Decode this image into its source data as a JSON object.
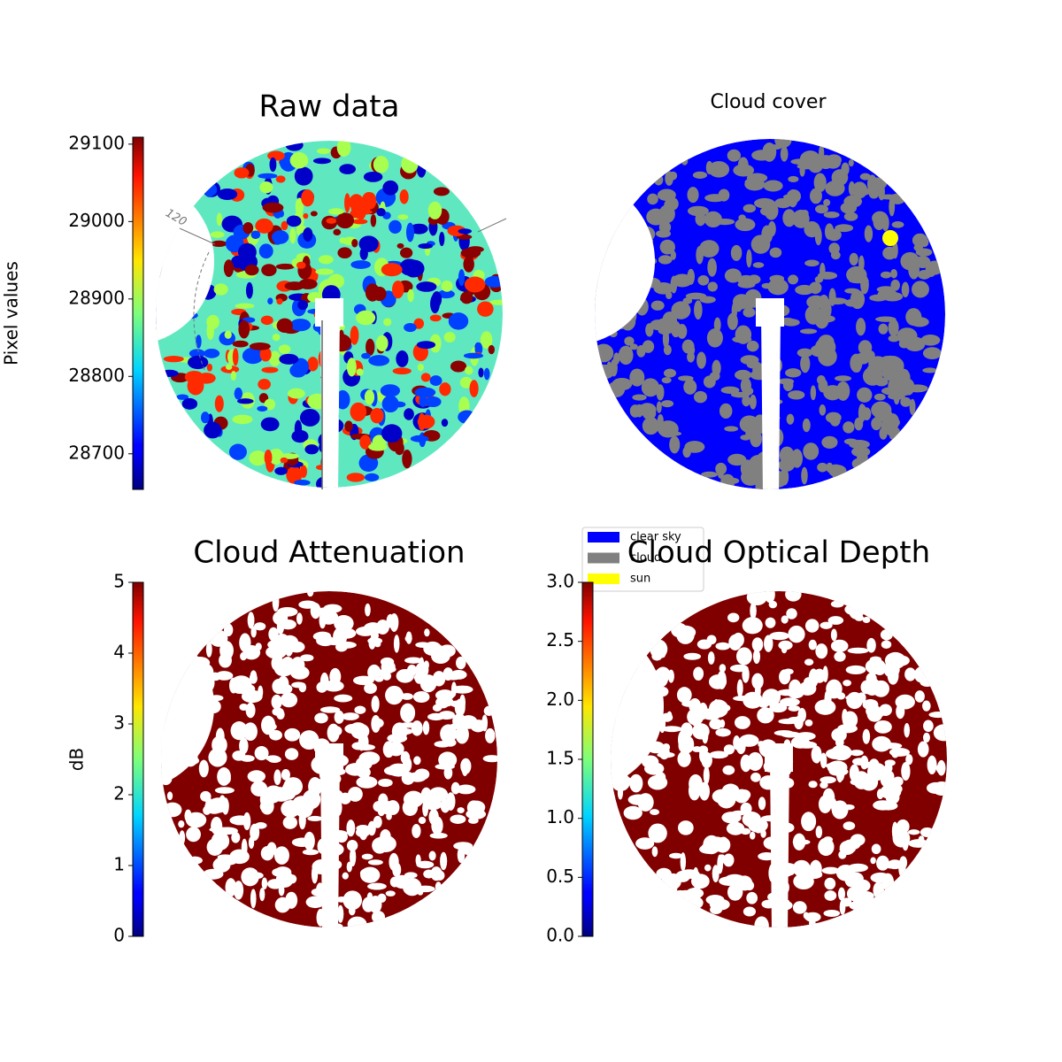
{
  "chart_data": [
    {
      "type": "image",
      "title": "Raw data",
      "ylabel": "Pixel values",
      "ylim": [
        28654,
        29109
      ],
      "yticks": [
        28700,
        28800,
        28900,
        29000,
        29100
      ],
      "annotations": [
        "120"
      ]
    },
    {
      "type": "image",
      "title": "Cloud cover",
      "legend": [
        {
          "name": "clear sky",
          "color": "#0000ff"
        },
        {
          "name": "cloud",
          "color": "#808080"
        },
        {
          "name": "sun",
          "color": "#ffff00"
        }
      ]
    },
    {
      "type": "image",
      "title": "Cloud Attenuation",
      "ylabel": "dB",
      "ylim": [
        0,
        5
      ],
      "yticks": [
        0,
        1,
        2,
        3,
        4,
        5
      ]
    },
    {
      "type": "image",
      "title": "Cloud Optical Depth",
      "ylim": [
        0,
        3
      ],
      "yticks": [
        {
          "value": 0,
          "label": "0.0"
        },
        0.5,
        {
          "value": 1,
          "label": "1.0"
        },
        1.5,
        {
          "value": 2,
          "label": "2.0"
        },
        2.5,
        {
          "value": 3,
          "label": "3.0"
        }
      ]
    }
  ]
}
